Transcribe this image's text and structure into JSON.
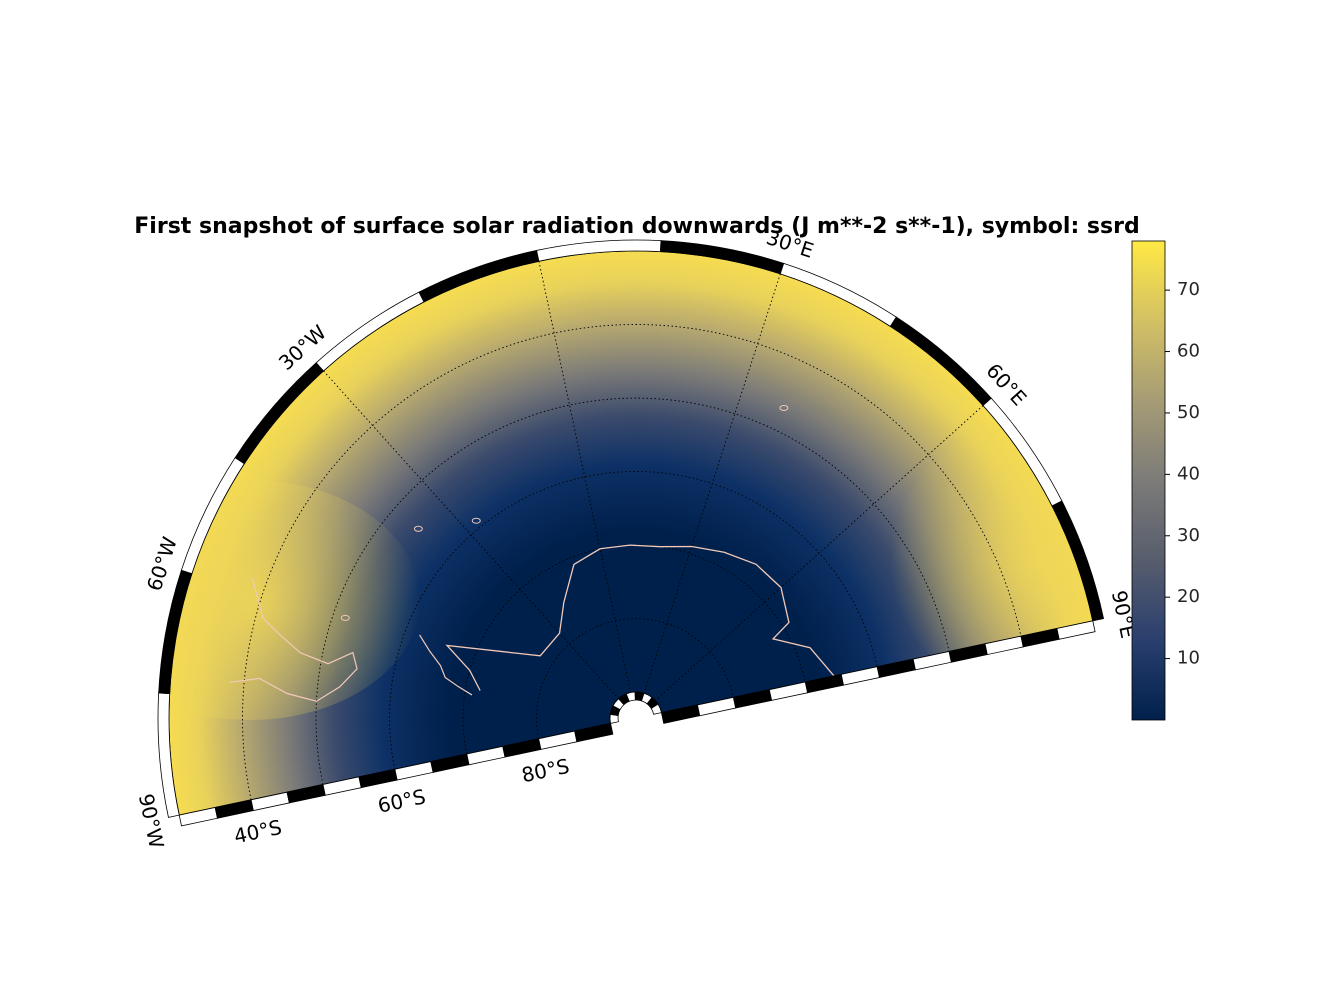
{
  "title": "First snapshot of surface solar radiation downwards (J m**-2 s**-1), symbol: ssrd",
  "map": {
    "projection": "south-polar-stereographic",
    "extent": {
      "lon_min": -90,
      "lon_max": 90,
      "lat_max": -30,
      "lat_min": -90
    },
    "colormap": "cividis",
    "coastline_color": "#f2c9b8",
    "meridian_labels": [
      "90°W",
      "60°W",
      "30°W",
      "30°E",
      "60°E",
      "90°E"
    ],
    "parallel_labels": [
      "40°S",
      "60°S",
      "80°S"
    ]
  },
  "colorbar": {
    "min": 0,
    "max": 78,
    "ticks": [
      {
        "value": 10,
        "label": "10"
      },
      {
        "value": 20,
        "label": "20"
      },
      {
        "value": 30,
        "label": "30"
      },
      {
        "value": 40,
        "label": "40"
      },
      {
        "value": 50,
        "label": "50"
      },
      {
        "value": 60,
        "label": "60"
      },
      {
        "value": 70,
        "label": "70"
      }
    ],
    "colors": [
      "#00204c",
      "#2a3f6e",
      "#575d6d",
      "#7c7b78",
      "#a69c75",
      "#d3c164",
      "#ffe945"
    ]
  }
}
